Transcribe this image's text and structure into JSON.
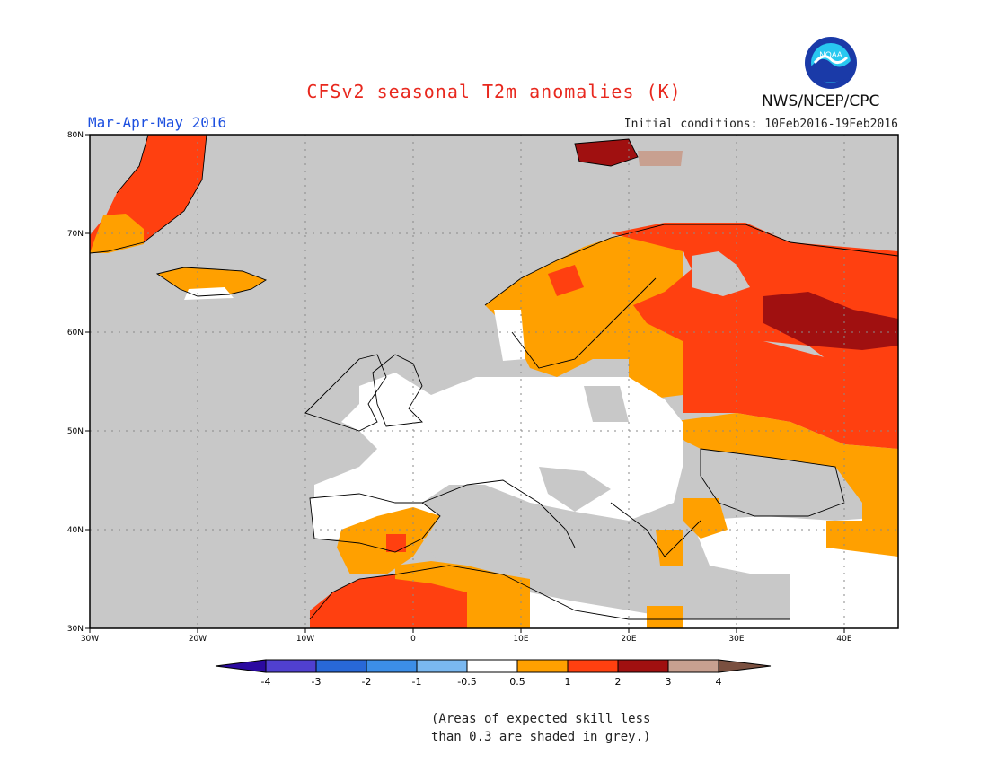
{
  "header": {
    "title": "CFSv2 seasonal T2m anomalies (K)",
    "season": "Mar-Apr-May 2016",
    "initial_conditions": "Initial conditions: 10Feb2016-19Feb2016",
    "org": "NWS/NCEP/CPC",
    "logo_text": "NOAA"
  },
  "map": {
    "lat_labels": [
      "80N",
      "70N",
      "60N",
      "50N",
      "40N",
      "30N"
    ],
    "lon_labels": [
      "30W",
      "20W",
      "10W",
      "0",
      "10E",
      "20E",
      "30E",
      "40E"
    ],
    "grid_lines": true,
    "colors": {
      "ocean": "#c8c8c8",
      "neutral": "#ffffff",
      "c_0_5_1": "#ffa000",
      "c_1_2": "#ff4010",
      "c_2_3": "#a01010",
      "c_3_4": "#c8a090"
    }
  },
  "colorbar": {
    "ticks": [
      "-4",
      "-3",
      "-2",
      "-1",
      "-0.5",
      "0.5",
      "1",
      "2",
      "3",
      "4"
    ],
    "colors": [
      "#2b0aa0",
      "#5040d0",
      "#2868d8",
      "#3c8ee8",
      "#7ab8f0",
      "#ffffff",
      "#ffa000",
      "#ff4010",
      "#a01010",
      "#c8a090",
      "#7a5040"
    ]
  },
  "note": {
    "line1": "(Areas of expected skill less",
    "line2": "than 0.3 are shaded in grey.)"
  }
}
